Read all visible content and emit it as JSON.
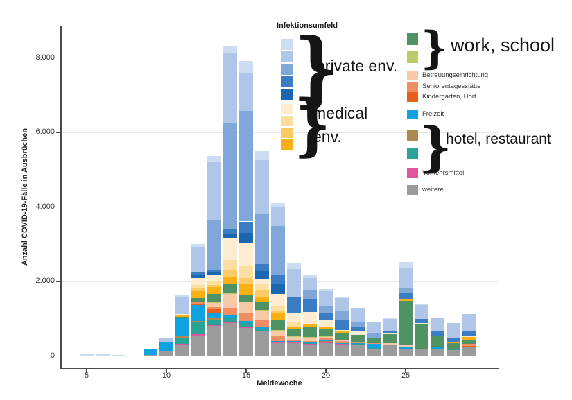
{
  "y_axis": {
    "label": "Anzahl COVID-19-Fälle in Ausbrüchen",
    "tick_labels": [
      "0",
      "2.000",
      "4.000",
      "6.000",
      "8.000"
    ],
    "tick_values": [
      0,
      2000,
      4000,
      6000,
      8000
    ],
    "max": 8000
  },
  "x_axis": {
    "label": "Meldewoche",
    "tick_values": [
      5,
      10,
      15,
      20,
      25
    ]
  },
  "legend": {
    "title": "Infektionsumfeld",
    "private_swatches": [
      "#cdddf1",
      "#afc6e8",
      "#7fa8d9",
      "#3a7dc2",
      "#1a66b0"
    ],
    "medical_swatches": [
      "#fdeccd",
      "#fcdf9e",
      "#fccb67",
      "#f9b014"
    ],
    "right_items": [
      {
        "label": "",
        "color": "#4f9365"
      },
      {
        "label": "",
        "color": "#b9cc69"
      },
      {
        "label": "Betreuungseinrichtung",
        "color": "#f9c9a7"
      },
      {
        "label": "Seniorentagesstätte",
        "color": "#f28d62"
      },
      {
        "label": "Kindergarten, Hort",
        "color": "#e85e1c"
      },
      {
        "label": "Freizeit",
        "color": "#0ea2df"
      },
      {
        "label": "",
        "color": "#ad8a50"
      },
      {
        "label": "",
        "color": "#2aa397"
      },
      {
        "label": "Verkehrsmittel",
        "color": "#e1559d"
      },
      {
        "label": "weitere",
        "color": "#9b9b9b"
      }
    ]
  },
  "annotations": {
    "private_env": "private env.",
    "medical_line1": "medical",
    "medical_line2": "env.",
    "work_school": "work, school",
    "hotel_restaurant": "hotel, restaurant",
    "brace_glyph": "}"
  },
  "chart_data": {
    "type": "bar",
    "stacked": true,
    "xlabel": "Meldewoche",
    "ylabel": "Anzahl COVID-19-Fälle in Ausbrüchen",
    "ylim": [
      0,
      8600
    ],
    "grid": true,
    "x_weeks": [
      5,
      6,
      7,
      8,
      9,
      10,
      11,
      12,
      13,
      14,
      15,
      16,
      17,
      18,
      19,
      20,
      21,
      22,
      23,
      24,
      25,
      26,
      27,
      28,
      29
    ],
    "series": [
      {
        "name": "weitere",
        "color": "#9b9b9b",
        "values": [
          0,
          0,
          0,
          0,
          15,
          110,
          280,
          545,
          800,
          875,
          745,
          650,
          340,
          335,
          310,
          350,
          300,
          300,
          190,
          280,
          180,
          170,
          170,
          150,
          215
        ]
      },
      {
        "name": "Verkehrsmittel",
        "color": "#e1559d",
        "values": [
          0,
          0,
          0,
          0,
          0,
          15,
          35,
          30,
          25,
          40,
          30,
          25,
          15,
          10,
          10,
          10,
          8,
          0,
          0,
          0,
          0,
          0,
          0,
          0,
          0
        ]
      },
      {
        "name": "hotel, restaurant (restaurant)",
        "color": "#2aa397",
        "values": [
          0,
          0,
          0,
          0,
          0,
          0,
          165,
          310,
          150,
          95,
          95,
          50,
          20,
          20,
          15,
          15,
          20,
          25,
          15,
          0,
          0,
          20,
          15,
          15,
          20
        ]
      },
      {
        "name": "hotel, restaurant (hotel)",
        "color": "#ad8a50",
        "values": [
          0,
          0,
          0,
          0,
          0,
          0,
          45,
          45,
          30,
          0,
          0,
          0,
          0,
          0,
          0,
          15,
          0,
          0,
          0,
          0,
          0,
          0,
          0,
          0,
          0
        ]
      },
      {
        "name": "Freizeit",
        "color": "#0ea2df",
        "values": [
          0,
          0,
          0,
          0,
          150,
          230,
          485,
          420,
          155,
          60,
          60,
          40,
          20,
          20,
          15,
          20,
          15,
          15,
          110,
          0,
          40,
          0,
          40,
          0,
          0
        ]
      },
      {
        "name": "Kindergarten, Hort",
        "color": "#e85e1c",
        "values": [
          0,
          0,
          0,
          0,
          0,
          0,
          0,
          30,
          90,
          0,
          0,
          0,
          0,
          0,
          0,
          0,
          0,
          0,
          0,
          0,
          0,
          0,
          0,
          0,
          25
        ]
      },
      {
        "name": "Seniorentagesstätte",
        "color": "#f28d62",
        "values": [
          0,
          0,
          0,
          0,
          0,
          0,
          0,
          50,
          60,
          220,
          220,
          185,
          125,
          50,
          40,
          60,
          50,
          20,
          15,
          25,
          30,
          0,
          0,
          20,
          50
        ]
      },
      {
        "name": "Betreuungseinrichtung",
        "color": "#f9c9a7",
        "values": [
          0,
          0,
          0,
          0,
          0,
          0,
          0,
          0,
          95,
          370,
          280,
          250,
          155,
          60,
          95,
          40,
          30,
          0,
          0,
          30,
          40,
          0,
          0,
          0,
          0
        ]
      },
      {
        "name": "work, school (light)",
        "color": "#b9cc69",
        "values": [
          0,
          0,
          0,
          0,
          0,
          0,
          0,
          30,
          30,
          30,
          30,
          25,
          20,
          20,
          15,
          15,
          10,
          0,
          0,
          0,
          0,
          0,
          0,
          0,
          0
        ]
      },
      {
        "name": "work, school (dark)",
        "color": "#4f9365",
        "values": [
          0,
          0,
          0,
          0,
          0,
          0,
          40,
          80,
          225,
          220,
          185,
          220,
          250,
          205,
          280,
          205,
          185,
          205,
          130,
          250,
          1180,
          650,
          290,
          155,
          125
        ]
      },
      {
        "name": "medical env. 4",
        "color": "#f9b014",
        "values": [
          0,
          0,
          0,
          0,
          0,
          0,
          50,
          190,
          185,
          220,
          280,
          125,
          185,
          60,
          60,
          40,
          40,
          0,
          0,
          0,
          30,
          20,
          0,
          40,
          75
        ]
      },
      {
        "name": "medical env. 3",
        "color": "#fccb67",
        "values": [
          0,
          0,
          0,
          0,
          0,
          0,
          0,
          90,
          60,
          155,
          160,
          185,
          60,
          0,
          0,
          0,
          0,
          0,
          0,
          0,
          0,
          0,
          0,
          0,
          0
        ]
      },
      {
        "name": "medical env. 2",
        "color": "#fcdf9e",
        "values": [
          0,
          0,
          0,
          0,
          0,
          0,
          0,
          85,
          95,
          280,
          330,
          155,
          155,
          120,
          0,
          0,
          0,
          0,
          0,
          0,
          0,
          0,
          0,
          0,
          0
        ]
      },
      {
        "name": "medical env. 1",
        "color": "#fdeccd",
        "values": [
          0,
          0,
          0,
          0,
          0,
          0,
          25,
          175,
          185,
          590,
          595,
          155,
          310,
          250,
          330,
          185,
          30,
          95,
          30,
          20,
          20,
          20,
          20,
          0,
          30
        ]
      },
      {
        "name": "private env. 5",
        "color": "#1a66b0",
        "values": [
          0,
          0,
          0,
          0,
          0,
          0,
          0,
          75,
          60,
          110,
          290,
          200,
          260,
          0,
          0,
          0,
          0,
          0,
          0,
          0,
          0,
          0,
          0,
          0,
          0
        ]
      },
      {
        "name": "private env. 4",
        "color": "#3a7dc2",
        "values": [
          0,
          0,
          0,
          0,
          0,
          0,
          0,
          80,
          65,
          115,
          300,
          200,
          265,
          440,
          330,
          185,
          280,
          95,
          0,
          60,
          150,
          110,
          120,
          110,
          125
        ]
      },
      {
        "name": "private env. 3",
        "color": "#7fa8d9",
        "values": [
          0,
          0,
          0,
          0,
          0,
          0,
          0,
          0,
          1330,
          2880,
          2960,
          1350,
          1305,
          0,
          240,
          185,
          240,
          130,
          110,
          0,
          130,
          0,
          0,
          0,
          0
        ]
      },
      {
        "name": "private env. 2",
        "color": "#afc6e8",
        "values": [
          0,
          0,
          0,
          0,
          0,
          115,
          440,
          675,
          1560,
          1865,
          1030,
          1430,
          500,
          740,
          335,
          410,
          330,
          390,
          310,
          330,
          560,
          370,
          375,
          385,
          450
        ]
      },
      {
        "name": "private env. 1",
        "color": "#cdddf1",
        "values": [
          35,
          30,
          25,
          0,
          0,
          0,
          60,
          90,
          150,
          185,
          310,
          240,
          110,
          160,
          75,
          50,
          40,
          0,
          0,
          30,
          150,
          40,
          0,
          0,
          0
        ]
      }
    ]
  }
}
